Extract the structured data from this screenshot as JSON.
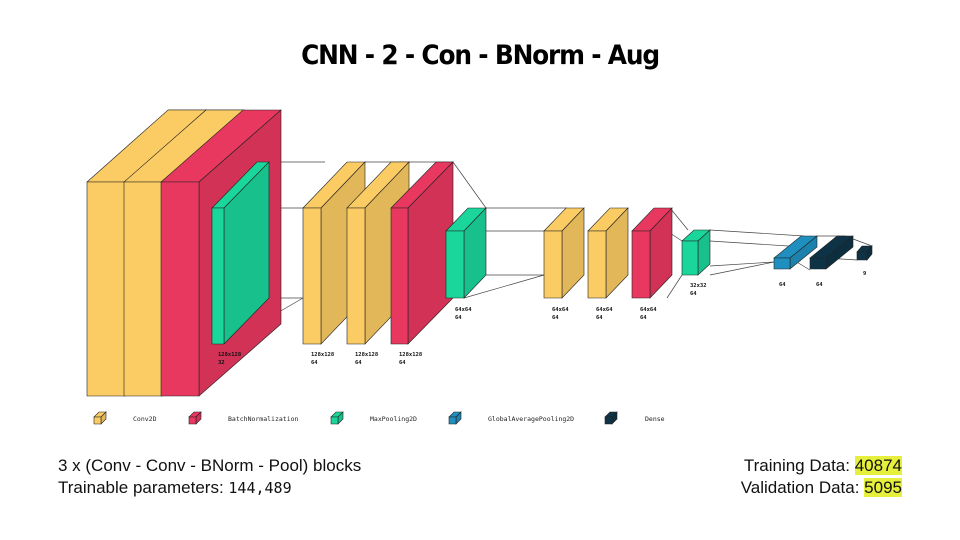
{
  "title": "CNN - 2 - Con - BNorm - Aug",
  "colors": {
    "conv2d": "#fbcb64",
    "batchnorm": "#e8385f",
    "maxpool": "#1bd69a",
    "gap": "#1f8fbf",
    "dense": "#0e3346",
    "highlight": "#e6ef3c"
  },
  "layer_labels": {
    "block1_pool": [
      "128x128",
      "32"
    ],
    "block2_conv1": [
      "128x128",
      "64"
    ],
    "block2_conv2": [
      "128x128",
      "64"
    ],
    "block2_bn": [
      "128x128",
      "64"
    ],
    "block2_pool": [
      "64x64",
      "64"
    ],
    "block3_conv1": [
      "64x64",
      "64"
    ],
    "block3_conv2": [
      "64x64",
      "64"
    ],
    "block3_bn": [
      "64x64",
      "64"
    ],
    "block3_pool": [
      "32x32",
      "64"
    ],
    "gap": "64",
    "dense1": "64",
    "dense2": "9"
  },
  "legend": [
    {
      "label": "Conv2D",
      "color": "conv2d"
    },
    {
      "label": "BatchNormalization",
      "color": "batchnorm"
    },
    {
      "label": "MaxPooling2D",
      "color": "maxpool"
    },
    {
      "label": "GlobalAveragePooling2D",
      "color": "gap"
    },
    {
      "label": "Dense",
      "color": "dense"
    }
  ],
  "info_left": {
    "line1": "3 x (Conv - Conv - BNorm - Pool) blocks",
    "line2_label": "Trainable parameters: ",
    "line2_value": "144,489"
  },
  "info_right": {
    "training_label": "Training Data: ",
    "training_value": "40874",
    "validation_label": "Validation Data: ",
    "validation_value": "5095"
  }
}
